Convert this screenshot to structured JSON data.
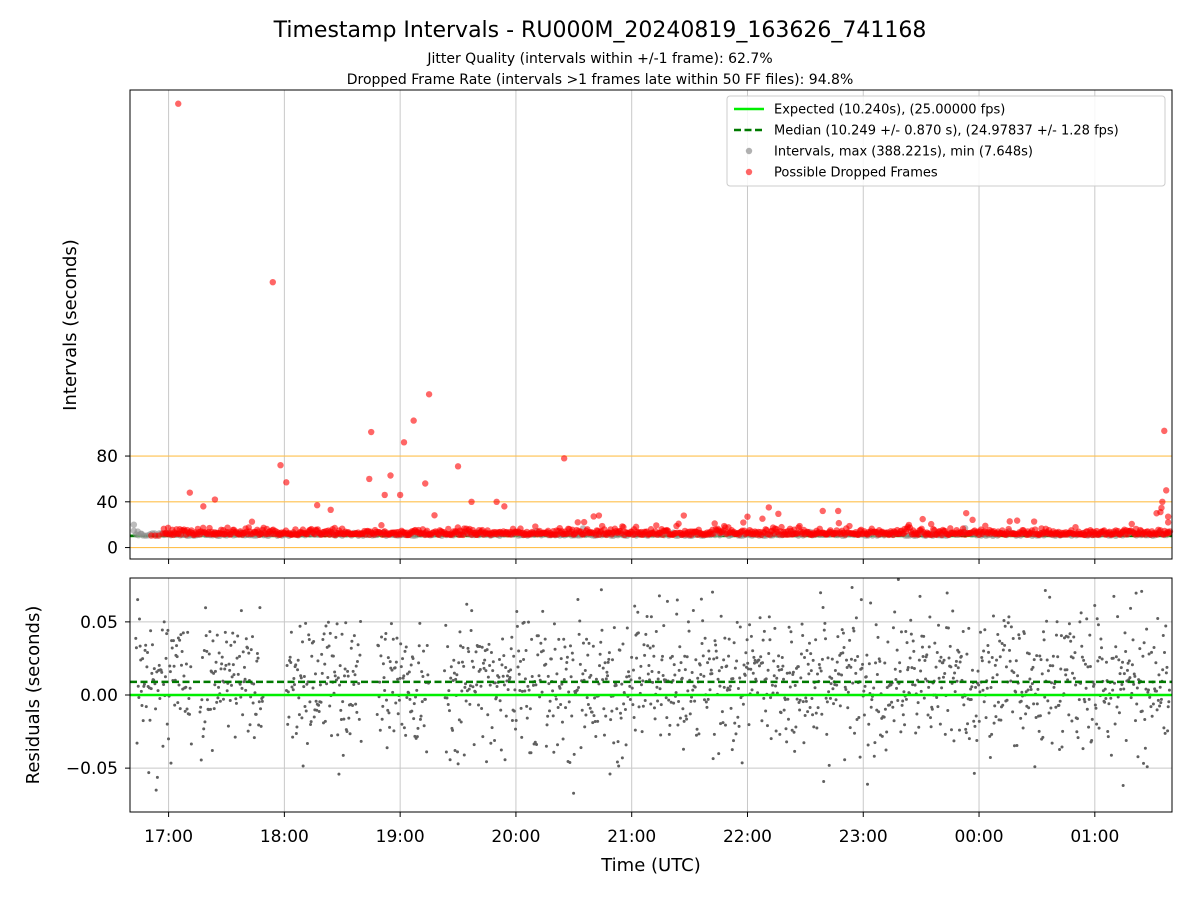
{
  "title": "Timestamp Intervals - RU000M_20240819_163626_741168",
  "subtitle_1": "Jitter Quality (intervals within +/-1 frame): 62.7%",
  "subtitle_2": "Dropped Frame Rate (intervals >1 frames late within 50 FF files): 94.8%",
  "colors": {
    "expected": "#00ee00",
    "median": "#007a00",
    "intervals": "#909090",
    "dropped": "#ff0000",
    "threshold": "#ffc04d",
    "residual_points": "#606060",
    "grid": "#c8c8c8"
  },
  "chart_data": [
    {
      "type": "scatter",
      "ylabel": "Intervals (seconds)",
      "ylim": [
        -10,
        400
      ],
      "y_ticks": [
        "0",
        "40",
        "80"
      ],
      "y_tick_values": [
        0,
        40,
        80
      ],
      "threshold_lines": [
        0,
        40,
        80
      ],
      "grid": true,
      "legend_position": "top-right",
      "legend": [
        {
          "label": "Expected (10.240s), (25.00000 fps)",
          "kind": "solid-line",
          "color": "#00ee00"
        },
        {
          "label": "Median (10.249 +/- 0.870 s), (24.97837 +/- 1.28 fps)",
          "kind": "dashed-line",
          "color": "#007a00"
        },
        {
          "label": "Intervals, max (388.221s), min (7.648s)",
          "kind": "marker",
          "color": "#909090"
        },
        {
          "label": "Possible Dropped Frames",
          "kind": "marker",
          "color": "#ff0000"
        }
      ],
      "expected_interval": 10.24,
      "median_interval": 10.249,
      "x_start": "2024-08-19T16:40",
      "x_end": "2024-08-20T01:40",
      "outliers_dropped": [
        {
          "t": "2024-08-19T17:05",
          "y": 388
        },
        {
          "t": "2024-08-19T17:54",
          "y": 232
        },
        {
          "t": "2024-08-19T19:15",
          "y": 134
        },
        {
          "t": "2024-08-19T19:07",
          "y": 111
        },
        {
          "t": "2024-08-19T18:45",
          "y": 101
        },
        {
          "t": "2024-08-19T19:02",
          "y": 92
        },
        {
          "t": "2024-08-19T20:25",
          "y": 78
        },
        {
          "t": "2024-08-19T17:58",
          "y": 72
        },
        {
          "t": "2024-08-19T19:30",
          "y": 71
        },
        {
          "t": "2024-08-19T18:55",
          "y": 63
        },
        {
          "t": "2024-08-19T18:44",
          "y": 60
        },
        {
          "t": "2024-08-19T18:01",
          "y": 57
        },
        {
          "t": "2024-08-19T19:13",
          "y": 56
        },
        {
          "t": "2024-08-19T17:11",
          "y": 48
        },
        {
          "t": "2024-08-19T18:52",
          "y": 46
        },
        {
          "t": "2024-08-19T19:00",
          "y": 46
        },
        {
          "t": "2024-08-19T17:24",
          "y": 42
        },
        {
          "t": "2024-08-19T19:37",
          "y": 40
        },
        {
          "t": "2024-08-19T19:50",
          "y": 40
        },
        {
          "t": "2024-08-19T18:17",
          "y": 37
        },
        {
          "t": "2024-08-19T17:18",
          "y": 36
        },
        {
          "t": "2024-08-19T18:24",
          "y": 33
        },
        {
          "t": "2024-08-19T22:39",
          "y": 32
        },
        {
          "t": "2024-08-19T22:47",
          "y": 32
        },
        {
          "t": "2024-08-19T19:54",
          "y": 36
        },
        {
          "t": "2024-08-19T20:43",
          "y": 28
        },
        {
          "t": "2024-08-19T21:27",
          "y": 28
        },
        {
          "t": "2024-08-19T22:00",
          "y": 27
        },
        {
          "t": "2024-08-20T01:36",
          "y": 102
        },
        {
          "t": "2024-08-20T01:37",
          "y": 50
        },
        {
          "t": "2024-08-20T01:35",
          "y": 40
        },
        {
          "t": "2024-08-20T01:34",
          "y": 31
        },
        {
          "t": "2024-08-20T01:32",
          "y": 30
        },
        {
          "t": "2024-08-20T01:38",
          "y": 27
        },
        {
          "t": "2024-08-20T01:38",
          "y": 22
        }
      ]
    },
    {
      "type": "scatter",
      "xlabel": "Time (UTC)",
      "ylabel": "Residuals (seconds)",
      "ylim": [
        -0.08,
        0.08
      ],
      "y_ticks": [
        "0.05",
        "0.00",
        "−0.05"
      ],
      "y_tick_values": [
        0.05,
        0,
        -0.05
      ],
      "x_ticks": [
        "17:00",
        "18:00",
        "19:00",
        "20:00",
        "21:00",
        "22:00",
        "23:00",
        "00:00",
        "01:00"
      ],
      "x_tick_times": [
        "2024-08-19T17:00",
        "2024-08-19T18:00",
        "2024-08-19T19:00",
        "2024-08-19T20:00",
        "2024-08-19T21:00",
        "2024-08-19T22:00",
        "2024-08-19T23:00",
        "2024-08-20T00:00",
        "2024-08-20T01:00"
      ],
      "expected_residual": 0.0,
      "median_residual": 0.009,
      "grid": true
    }
  ]
}
